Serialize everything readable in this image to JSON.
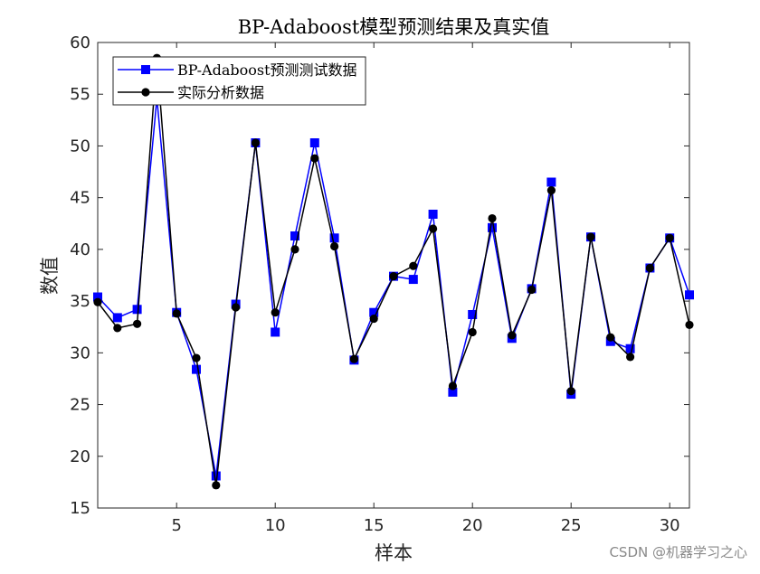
{
  "watermark": "CSDN @机器学习之心",
  "chart_data": {
    "type": "line",
    "title": "BP-Adaboost模型预测结果及真实值",
    "xlabel": "样本",
    "ylabel": "数值",
    "xlim": [
      1,
      31
    ],
    "ylim": [
      15,
      60
    ],
    "xticks": [
      5,
      10,
      15,
      20,
      25,
      30
    ],
    "yticks": [
      15,
      20,
      25,
      30,
      35,
      40,
      45,
      50,
      55,
      60
    ],
    "grid": false,
    "legend_position": "top-left",
    "x": [
      1,
      2,
      3,
      4,
      5,
      6,
      7,
      8,
      9,
      10,
      11,
      12,
      13,
      14,
      15,
      16,
      17,
      18,
      19,
      20,
      21,
      22,
      23,
      24,
      25,
      26,
      27,
      28,
      29,
      30,
      31
    ],
    "series": [
      {
        "name": "BP-Adaboost预测测试数据",
        "color": "#0000ff",
        "marker": "square",
        "values": [
          35.4,
          33.4,
          34.2,
          54.6,
          33.9,
          28.4,
          18.1,
          34.7,
          50.3,
          32.0,
          41.3,
          50.3,
          41.1,
          29.3,
          33.9,
          37.4,
          37.1,
          43.4,
          26.2,
          33.7,
          42.1,
          31.4,
          36.2,
          46.5,
          26.0,
          41.2,
          31.1,
          30.4,
          38.2,
          41.1,
          35.6
        ]
      },
      {
        "name": "实际分析数据",
        "color": "#000000",
        "marker": "circle",
        "values": [
          34.9,
          32.4,
          32.8,
          58.5,
          33.8,
          29.5,
          17.2,
          34.4,
          50.3,
          33.9,
          40.0,
          48.8,
          40.3,
          29.4,
          33.3,
          37.4,
          38.4,
          42.0,
          26.8,
          32.0,
          43.0,
          31.7,
          36.1,
          45.7,
          26.3,
          41.2,
          31.5,
          29.6,
          38.2,
          41.1,
          32.7
        ]
      }
    ]
  }
}
